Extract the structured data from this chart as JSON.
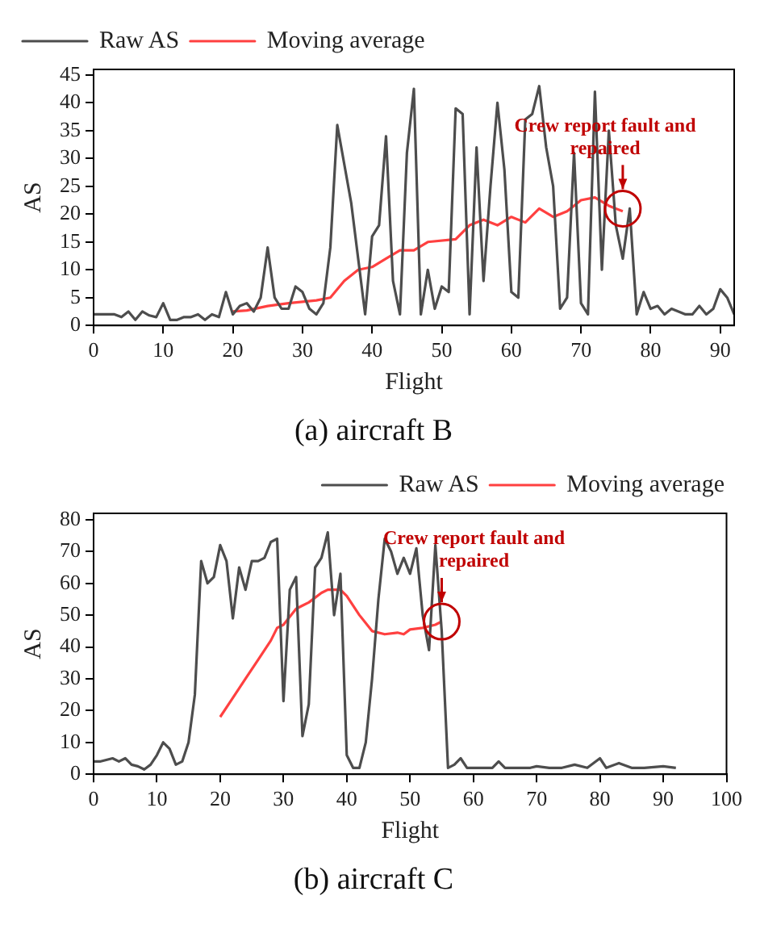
{
  "chart_data": [
    {
      "type": "line",
      "title": "(a) aircraft B",
      "xlabel": "Flight",
      "ylabel": "AS",
      "xlim": [
        0,
        92
      ],
      "xticks": [
        0,
        10,
        20,
        30,
        40,
        50,
        60,
        70,
        80,
        90
      ],
      "ylim": [
        0,
        46
      ],
      "yticks": [
        0,
        5,
        10,
        15,
        20,
        25,
        30,
        35,
        40,
        45
      ],
      "legend": "top left",
      "grid": false,
      "line_style": "solid",
      "marker": "none",
      "series": [
        {
          "name": "Raw AS",
          "color": "#4d4d4d",
          "x": [
            0,
            1,
            2,
            3,
            4,
            5,
            6,
            7,
            8,
            9,
            10,
            11,
            12,
            13,
            14,
            15,
            16,
            17,
            18,
            19,
            20,
            21,
            22,
            23,
            24,
            25,
            26,
            27,
            28,
            29,
            30,
            31,
            32,
            33,
            34,
            35,
            36,
            37,
            38,
            39,
            40,
            41,
            42,
            43,
            44,
            45,
            46,
            47,
            48,
            49,
            50,
            51,
            52,
            53,
            54,
            55,
            56,
            57,
            58,
            59,
            60,
            61,
            62,
            63,
            64,
            65,
            66,
            67,
            68,
            69,
            70,
            71,
            72,
            73,
            74,
            75,
            76,
            77,
            78,
            79,
            80,
            81,
            82,
            83,
            84,
            85,
            86,
            87,
            88,
            89,
            90,
            91,
            92
          ],
          "values": [
            2,
            2,
            2,
            2,
            1.5,
            2.5,
            1,
            2.5,
            1.8,
            1.5,
            4,
            1,
            1,
            1.5,
            1.5,
            2,
            1,
            2,
            1.5,
            6,
            2,
            3.5,
            4,
            2.5,
            5,
            14,
            5,
            3,
            3,
            7,
            6,
            3,
            2,
            4,
            14,
            36,
            29,
            22,
            12,
            2,
            16,
            18,
            34,
            8,
            2,
            31,
            42.5,
            2,
            10,
            3,
            7,
            6,
            39,
            38,
            2,
            32,
            8,
            25,
            40,
            28,
            6,
            5,
            37,
            38,
            43,
            32,
            25,
            3,
            5,
            31,
            4,
            2,
            42,
            10,
            35,
            18,
            12,
            21,
            2,
            6,
            3,
            3.5,
            2,
            3,
            2.5,
            2,
            2,
            3.5,
            2,
            3,
            6.5,
            5,
            2
          ]
        },
        {
          "name": "Moving average",
          "color": "#ff4040",
          "x": [
            20,
            22,
            25,
            28,
            32,
            34,
            36,
            38,
            40,
            42,
            44,
            46,
            48,
            52,
            54,
            56,
            58,
            60,
            62,
            64,
            66,
            68,
            70,
            72,
            74,
            76
          ],
          "values": [
            2.5,
            2.7,
            3.5,
            4,
            4.5,
            5,
            8,
            10,
            10.5,
            12,
            13.5,
            13.5,
            15,
            15.5,
            18,
            19,
            18,
            19.5,
            18.5,
            21,
            19.5,
            20.5,
            22.5,
            23,
            21.5,
            20.5
          ]
        }
      ],
      "annotations": [
        {
          "text": "Crew report fault and repaired",
          "x": 76,
          "y": 21
        }
      ]
    },
    {
      "type": "line",
      "title": "(b) aircraft C",
      "xlabel": "Flight",
      "ylabel": "AS",
      "xlim": [
        0,
        100
      ],
      "xticks": [
        0,
        10,
        20,
        30,
        40,
        50,
        60,
        70,
        80,
        90,
        100
      ],
      "ylim": [
        0,
        82
      ],
      "yticks": [
        0,
        10,
        20,
        30,
        40,
        50,
        60,
        70,
        80
      ],
      "legend": "top right",
      "grid": false,
      "line_style": "solid",
      "marker": "none",
      "series": [
        {
          "name": "Raw AS",
          "color": "#4d4d4d",
          "x": [
            0,
            1,
            2,
            3,
            4,
            5,
            6,
            7,
            8,
            9,
            10,
            11,
            12,
            13,
            14,
            15,
            16,
            17,
            18,
            19,
            20,
            21,
            22,
            23,
            24,
            25,
            26,
            27,
            28,
            29,
            30,
            31,
            32,
            33,
            34,
            35,
            36,
            37,
            38,
            39,
            40,
            41,
            42,
            43,
            44,
            45,
            46,
            47,
            48,
            49,
            50,
            51,
            52,
            53,
            54,
            55,
            56,
            57,
            58,
            59,
            60,
            61,
            62,
            63,
            64,
            65,
            66,
            67,
            68,
            69,
            70,
            72,
            74,
            76,
            78,
            80,
            81,
            83,
            85,
            87,
            90,
            92
          ],
          "values": [
            4,
            4,
            4.5,
            5,
            4,
            5,
            3,
            2.5,
            1.5,
            3,
            6,
            10,
            8,
            3,
            4,
            10,
            25,
            67,
            60,
            62,
            72,
            67,
            49,
            65,
            58,
            67,
            67,
            68,
            73,
            74,
            23,
            58,
            62,
            12,
            22,
            65,
            68,
            76,
            50,
            63,
            6,
            2,
            2,
            10,
            30,
            55,
            74,
            70,
            63,
            68,
            63,
            71,
            50,
            39,
            72,
            45,
            2,
            3,
            5,
            2,
            2,
            2,
            2,
            2,
            4,
            2,
            2,
            2,
            2,
            2,
            2.5,
            2,
            2,
            3,
            2,
            5,
            2,
            3.5,
            2,
            2,
            2.5,
            2
          ]
        },
        {
          "name": "Moving average",
          "color": "#ff4040",
          "x": [
            20,
            22,
            24,
            26,
            28,
            29,
            30,
            32,
            33,
            34,
            36,
            37,
            38,
            39,
            40,
            42,
            44,
            46,
            48,
            49,
            50,
            52,
            54,
            55
          ],
          "values": [
            18,
            24,
            30,
            36,
            42,
            46,
            47,
            52,
            53,
            54,
            57,
            58,
            58,
            58,
            56,
            50,
            45,
            44,
            44.5,
            44,
            45.5,
            46,
            47,
            48
          ]
        }
      ],
      "annotations": [
        {
          "text": "Crew report fault and repaired",
          "x": 55,
          "y": 48
        }
      ]
    }
  ]
}
